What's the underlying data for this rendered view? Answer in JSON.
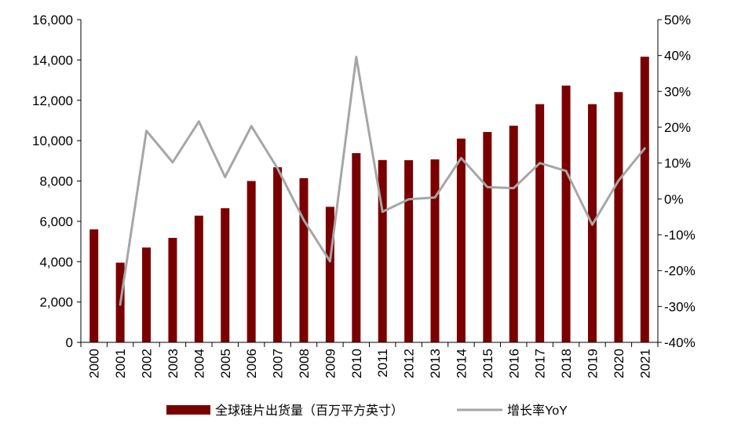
{
  "chart_data": {
    "type": "bar",
    "categories": [
      "2000",
      "2001",
      "2002",
      "2003",
      "2004",
      "2005",
      "2006",
      "2007",
      "2008",
      "2009",
      "2010",
      "2011",
      "2012",
      "2013",
      "2014",
      "2015",
      "2016",
      "2017",
      "2018",
      "2019",
      "2020",
      "2021"
    ],
    "series": [
      {
        "name": "全球硅片出货量（百万平方英寸）",
        "type": "bar",
        "axis": "left",
        "color": "#7a0000",
        "values": [
          5600,
          3950,
          4700,
          5180,
          6280,
          6650,
          8000,
          8680,
          8140,
          6720,
          9380,
          9040,
          9030,
          9070,
          10100,
          10430,
          10740,
          11810,
          12730,
          11810,
          12410,
          14160
        ]
      },
      {
        "name": "增长率YoY",
        "type": "line",
        "axis": "right",
        "color": "#a6a6a6",
        "values": [
          null,
          -29.5,
          19.0,
          10.2,
          21.6,
          6.1,
          20.3,
          8.5,
          -5.9,
          -17.4,
          39.6,
          -3.6,
          -0.1,
          0.4,
          11.4,
          3.3,
          3.0,
          10.0,
          7.8,
          -7.2,
          5.1,
          14.1
        ]
      }
    ],
    "y_left": {
      "min": 0,
      "max": 16000,
      "ticks": [
        "0",
        "2,000",
        "4,000",
        "6,000",
        "8,000",
        "10,000",
        "12,000",
        "14,000",
        "16,000"
      ]
    },
    "y_right": {
      "min": -40,
      "max": 50,
      "ticks": [
        "-40%",
        "-30%",
        "-20%",
        "-10%",
        "0%",
        "10%",
        "20%",
        "30%",
        "40%",
        "50%"
      ]
    },
    "title": "",
    "xlabel": "",
    "ylabel": "",
    "grid": false,
    "legend": "bottom-center"
  }
}
